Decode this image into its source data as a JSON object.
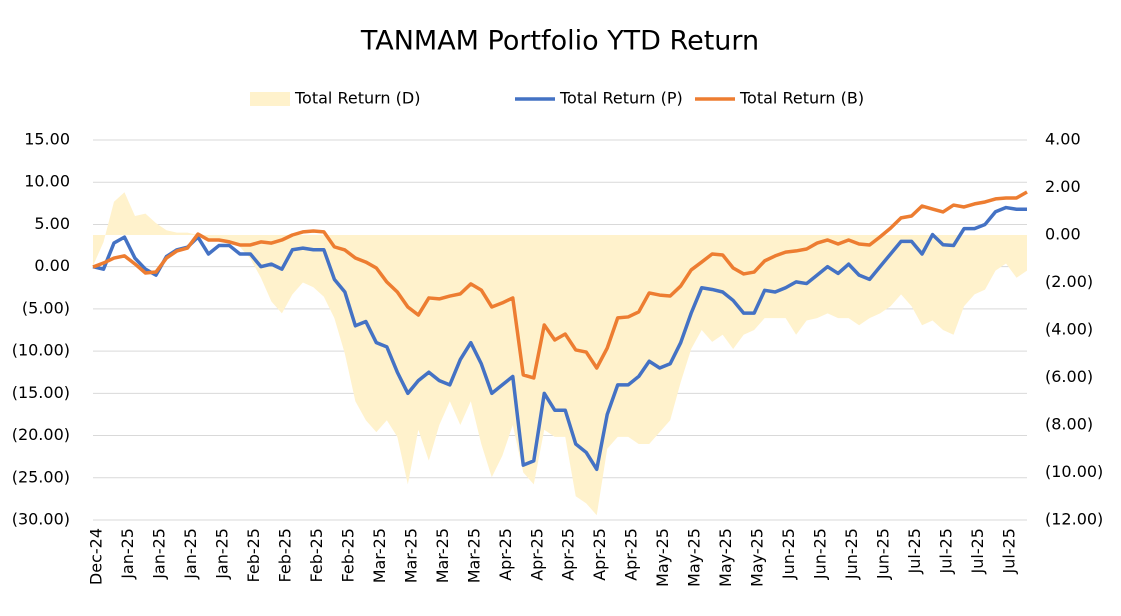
{
  "chart_data": {
    "type": "line",
    "title": "TANMAM Portfolio YTD Return",
    "categories": [
      "Dec-24",
      null,
      null,
      "Jan-25",
      null,
      null,
      "Jan-25",
      null,
      null,
      "Jan-25",
      null,
      null,
      "Jan-25",
      null,
      null,
      "Feb-25",
      null,
      null,
      "Feb-25",
      null,
      null,
      "Feb-25",
      null,
      null,
      "Feb-25",
      null,
      null,
      "Mar-25",
      null,
      null,
      "Mar-25",
      null,
      null,
      "Mar-25",
      null,
      null,
      "Mar-25",
      null,
      null,
      "Apr-25",
      null,
      null,
      "Apr-25",
      null,
      null,
      "Apr-25",
      null,
      null,
      "Apr-25",
      null,
      null,
      "Apr-25",
      null,
      null,
      "May-25",
      null,
      null,
      "May-25",
      null,
      null,
      "May-25",
      null,
      null,
      "May-25",
      null,
      null,
      "Jun-25",
      null,
      null,
      "Jun-25",
      null,
      null,
      "Jun-25",
      null,
      null,
      "Jun-25",
      null,
      null,
      "Jul-25",
      null,
      null,
      "Jul-25",
      null,
      null,
      "Jul-25",
      null,
      null,
      "Jul-25",
      null,
      null
    ],
    "series": [
      {
        "name": "Total Return (D)",
        "type": "area",
        "axis": "y2",
        "color": "#FFF2CC",
        "values": [
          -1.3,
          -0.3,
          1.4,
          1.8,
          0.8,
          0.9,
          0.5,
          0.2,
          0.1,
          0.1,
          0,
          -0.3,
          -0.2,
          -0.3,
          -0.5,
          -1,
          -1.8,
          -2.8,
          -3.3,
          -2.5,
          -2,
          -2.2,
          -2.6,
          -3.5,
          -5,
          -7,
          -7.8,
          -8.3,
          -7.8,
          -8.5,
          -10.5,
          -8.2,
          -9.5,
          -8,
          -7,
          -8,
          -7,
          -8.8,
          -10.2,
          -9.3,
          -8,
          -10,
          -10.5,
          -8.2,
          -8.5,
          -8.5,
          -11,
          -11.3,
          -11.8,
          -9,
          -8.5,
          -8.5,
          -8.8,
          -8.8,
          -8.3,
          -7.8,
          -6.2,
          -4.8,
          -4,
          -4.5,
          -4.2,
          -4.8,
          -4.2,
          -4,
          -3.5,
          -3.5,
          -3.5,
          -4.2,
          -3.6,
          -3.5,
          -3.3,
          -3.5,
          -3.5,
          -3.8,
          -3.5,
          -3.3,
          -3,
          -2.5,
          -3,
          -3.8,
          -3.6,
          -4,
          -4.2,
          -3,
          -2.5,
          -2.3,
          -1.5,
          -1.2,
          -1.8,
          -1.5
        ]
      },
      {
        "name": "Total Return (P)",
        "type": "line",
        "color": "#4472C4",
        "values": [
          0,
          -0.3,
          2.8,
          3.5,
          1,
          -0.3,
          -1,
          1.2,
          2,
          2.3,
          3.5,
          1.5,
          2.5,
          2.5,
          1.5,
          1.5,
          0,
          0.3,
          -0.3,
          2,
          2.2,
          2,
          2,
          -1.5,
          -3,
          -7,
          -6.5,
          -9,
          -9.5,
          -12.5,
          -15,
          -13.5,
          -12.5,
          -13.5,
          -14,
          -11,
          -9,
          -11.5,
          -15,
          -14,
          -13,
          -23.5,
          -23,
          -15,
          -17,
          -17,
          -21,
          -22,
          -24,
          -17.5,
          -14,
          -14,
          -13,
          -11.2,
          -12,
          -11.5,
          -9,
          -5.5,
          -2.5,
          -2.7,
          -3,
          -4,
          -5.5,
          -5.5,
          -2.8,
          -3,
          -2.5,
          -1.8,
          -2,
          -1,
          0,
          -0.8,
          0.3,
          -1,
          -1.5,
          0,
          1.5,
          3,
          3,
          1.5,
          3.8,
          2.6,
          2.5,
          4.5,
          4.5,
          5,
          6.5,
          7,
          6.8,
          6.8
        ]
      },
      {
        "name": "Total Return (B)",
        "type": "line",
        "axis": "y2",
        "color": "#ED7D31",
        "values": [
          -1.35,
          -1.18,
          -0.97,
          -0.88,
          -1.22,
          -1.6,
          -1.56,
          -0.97,
          -0.67,
          -0.55,
          0.04,
          -0.21,
          -0.21,
          -0.29,
          -0.42,
          -0.42,
          -0.29,
          -0.34,
          -0.21,
          0,
          0.13,
          0.17,
          0.13,
          -0.5,
          -0.63,
          -0.97,
          -1.14,
          -1.39,
          -1.98,
          -2.4,
          -3.03,
          -3.37,
          -2.65,
          -2.69,
          -2.57,
          -2.48,
          -2.06,
          -2.32,
          -3.03,
          -2.86,
          -2.65,
          -5.89,
          -6.02,
          -3.79,
          -4.42,
          -4.17,
          -4.84,
          -4.93,
          -5.6,
          -4.76,
          -3.49,
          -3.45,
          -3.24,
          -2.44,
          -2.53,
          -2.57,
          -2.15,
          -1.47,
          -1.14,
          -0.8,
          -0.84,
          -1.39,
          -1.64,
          -1.56,
          -1.09,
          -0.88,
          -0.72,
          -0.67,
          -0.59,
          -0.34,
          -0.21,
          -0.38,
          -0.21,
          -0.38,
          -0.42,
          -0.08,
          0.29,
          0.72,
          0.8,
          1.22,
          1.09,
          0.97,
          1.26,
          1.18,
          1.31,
          1.39,
          1.52,
          1.56,
          1.56,
          1.81
        ]
      }
    ],
    "ylim": [
      -30,
      15
    ],
    "yticks": [
      {
        "value": 15,
        "label": "15.00"
      },
      {
        "value": 10,
        "label": "10.00"
      },
      {
        "value": 5,
        "label": "5.00"
      },
      {
        "value": 0,
        "label": "0.00"
      },
      {
        "value": -5,
        "label": "(5.00)"
      },
      {
        "value": -10,
        "label": "(10.00)"
      },
      {
        "value": -15,
        "label": "(15.00)"
      },
      {
        "value": -20,
        "label": "(20.00)"
      },
      {
        "value": -25,
        "label": "(25.00)"
      },
      {
        "value": -30,
        "label": "(30.00)"
      }
    ],
    "y2lim": [
      -12,
      4
    ],
    "y2ticks": [
      {
        "value": 4,
        "label": "4.00"
      },
      {
        "value": 2,
        "label": "2.00"
      },
      {
        "value": 0,
        "label": "0.00"
      },
      {
        "value": -2,
        "label": "(2.00)"
      },
      {
        "value": -4,
        "label": "(4.00)"
      },
      {
        "value": -6,
        "label": "(6.00)"
      },
      {
        "value": -8,
        "label": "(8.00)"
      },
      {
        "value": -10,
        "label": "(10.00)"
      },
      {
        "value": -12,
        "label": "(12.00)"
      }
    ],
    "grid": true,
    "negative_tick_color": "#FF0000",
    "legend": "top"
  }
}
